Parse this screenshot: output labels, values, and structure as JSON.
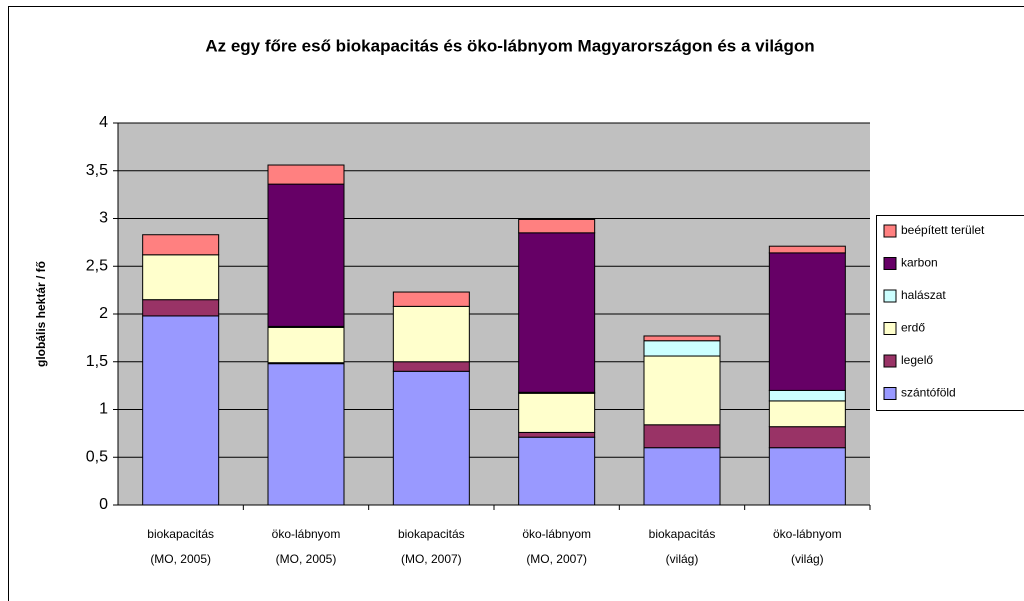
{
  "chart_data": {
    "type": "stacked_bar",
    "title": "Az egy főre eső biokapacitás és öko-lábnyom Magyarországon és a világon",
    "ylabel": "globális hektár / fő",
    "categories": [
      [
        "biokapacitás",
        "(MO, 2005)"
      ],
      [
        "öko-lábnyom",
        "(MO, 2005)"
      ],
      [
        "biokapacitás",
        "(MO, 2007)"
      ],
      [
        "öko-lábnyom",
        "(MO, 2007)"
      ],
      [
        "biokapacitás",
        "(világ)"
      ],
      [
        "öko-lábnyom",
        "(világ)"
      ]
    ],
    "series": [
      {
        "name": "szántóföld",
        "color": "#9999ff",
        "values": [
          1.98,
          1.48,
          1.4,
          0.71,
          0.6,
          0.6
        ]
      },
      {
        "name": "legelő",
        "color": "#993366",
        "values": [
          0.17,
          0.01,
          0.1,
          0.05,
          0.24,
          0.22
        ]
      },
      {
        "name": "erdő",
        "color": "#ffffcc",
        "values": [
          0.47,
          0.37,
          0.58,
          0.41,
          0.72,
          0.27
        ]
      },
      {
        "name": "halászat",
        "color": "#ccffff",
        "values": [
          0,
          0.01,
          0,
          0.01,
          0.16,
          0.11
        ]
      },
      {
        "name": "karbon",
        "color": "#660066",
        "values": [
          0,
          1.49,
          0,
          1.67,
          0,
          1.44
        ]
      },
      {
        "name": "beépített terület",
        "color": "#ff8080",
        "values": [
          0.21,
          0.2,
          0.15,
          0.14,
          0.05,
          0.07
        ]
      }
    ],
    "ylim": [
      0,
      4
    ],
    "yticks": [
      0,
      {
        "value": 0.5,
        "label": "0,5"
      },
      1,
      {
        "value": 1.5,
        "label": "1,5"
      },
      2,
      {
        "value": 2.5,
        "label": "2,5"
      },
      3,
      {
        "value": 3.5,
        "label": "3,5"
      },
      4
    ],
    "grid": true,
    "legend": "right",
    "plot_background": "#c0c0c0"
  }
}
